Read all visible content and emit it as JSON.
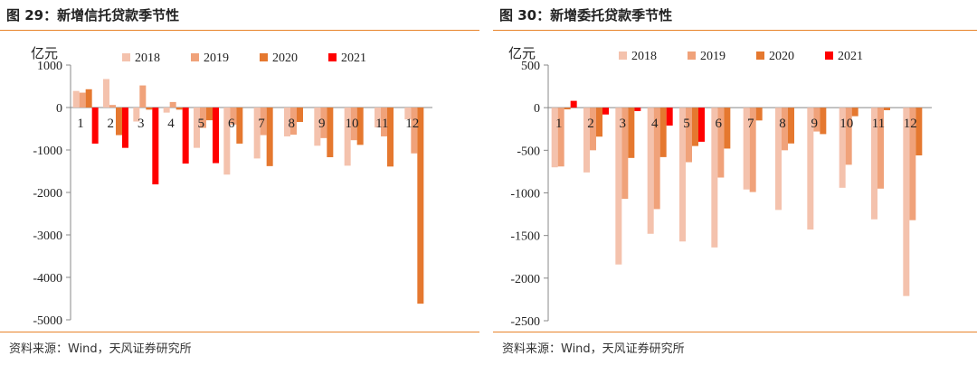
{
  "colors": {
    "2018": "#f4c2ad",
    "2019": "#f0a27a",
    "2020": "#e5782f",
    "2021": "#ff0000",
    "rule": "#e8832a"
  },
  "left": {
    "title": "图 29：新增信托贷款季节性",
    "source": "资料来源：Wind，天风证券研究所"
  },
  "right": {
    "title": "图 30：新增委托贷款季节性",
    "source": "资料来源：Wind，天风证券研究所"
  },
  "chart_data": [
    {
      "type": "bar",
      "title": "新增信托贷款季节性",
      "ylabel": "亿元",
      "ylim": [
        -5000,
        1000
      ],
      "yticks": [
        1000,
        0,
        -1000,
        -2000,
        -3000,
        -4000,
        -5000
      ],
      "categories": [
        "1",
        "2",
        "3",
        "4",
        "5",
        "6",
        "7",
        "8",
        "9",
        "10",
        "11",
        "12"
      ],
      "legend_position": "top",
      "series": [
        {
          "name": "2018",
          "values": [
            390,
            670,
            -330,
            -120,
            -950,
            -1580,
            -1200,
            -680,
            -900,
            -1370,
            -470,
            -280
          ]
        },
        {
          "name": "2019",
          "values": [
            350,
            60,
            520,
            130,
            -480,
            -400,
            -650,
            -640,
            -720,
            -770,
            -680,
            -1080
          ]
        },
        {
          "name": "2020",
          "values": [
            430,
            -650,
            -50,
            -50,
            -300,
            -850,
            -1380,
            -340,
            -1170,
            -880,
            -1390,
            -4620
          ]
        },
        {
          "name": "2021",
          "values": [
            -850,
            -950,
            -1810,
            -1320,
            -1310,
            null,
            null,
            null,
            null,
            null,
            null,
            null
          ]
        }
      ]
    },
    {
      "type": "bar",
      "title": "新增委托贷款季节性",
      "ylabel": "亿元",
      "ylim": [
        -2500,
        500
      ],
      "yticks": [
        500,
        0,
        -500,
        -1000,
        -1500,
        -2000,
        -2500
      ],
      "categories": [
        "1",
        "2",
        "3",
        "4",
        "5",
        "6",
        "7",
        "8",
        "9",
        "10",
        "11",
        "12"
      ],
      "legend_position": "top",
      "series": [
        {
          "name": "2018",
          "values": [
            -700,
            -760,
            -1840,
            -1480,
            -1570,
            -1640,
            -960,
            -1200,
            -1430,
            -940,
            -1310,
            -2210
          ]
        },
        {
          "name": "2019",
          "values": [
            -690,
            -500,
            -1070,
            -1190,
            -640,
            -820,
            -990,
            -500,
            -280,
            -670,
            -950,
            -1320
          ]
        },
        {
          "name": "2020",
          "values": [
            -20,
            -340,
            -590,
            -580,
            -450,
            -480,
            -150,
            -420,
            -310,
            -100,
            -30,
            -560
          ]
        },
        {
          "name": "2021",
          "values": [
            80,
            -80,
            -40,
            -210,
            -400,
            null,
            null,
            null,
            null,
            null,
            null,
            null
          ]
        }
      ]
    }
  ]
}
